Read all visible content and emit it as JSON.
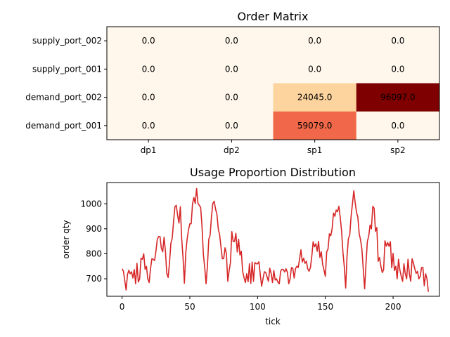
{
  "chart_data": [
    {
      "type": "heatmap",
      "title": "Order Matrix",
      "rows": [
        "supply_port_002",
        "supply_port_001",
        "demand_port_002",
        "demand_port_001"
      ],
      "columns": [
        "dp1",
        "dp2",
        "sp1",
        "sp2"
      ],
      "values": [
        [
          0.0,
          0.0,
          0.0,
          0.0
        ],
        [
          0.0,
          0.0,
          0.0,
          0.0
        ],
        [
          0.0,
          0.0,
          24045.0,
          96097.0
        ],
        [
          0.0,
          0.0,
          59079.0,
          0.0
        ]
      ],
      "cell_labels": [
        [
          "0.0",
          "0.0",
          "0.0",
          "0.0"
        ],
        [
          "0.0",
          "0.0",
          "0.0",
          "0.0"
        ],
        [
          "0.0",
          "0.0",
          "24045.0",
          "96097.0"
        ],
        [
          "0.0",
          "0.0",
          "59079.0",
          "0.0"
        ]
      ],
      "colormap": "OrRd",
      "color_low": "#fff7ec",
      "color_high": "#7f0000"
    },
    {
      "type": "line",
      "title": "Usage Proportion Distribution",
      "xlabel": "tick",
      "ylabel": "order qty",
      "xlim": [
        -11.2,
        234.2
      ],
      "ylim": [
        630,
        1085
      ],
      "xticks": [
        0,
        50,
        100,
        150,
        200
      ],
      "yticks": [
        700,
        800,
        900,
        1000
      ],
      "line_color": "#d62728",
      "series": [
        {
          "values": [
            740,
            731,
            693,
            655,
            717,
            734,
            720,
            728,
            703,
            737,
            680,
            762,
            687,
            700,
            782,
            778,
            800,
            738,
            750,
            700,
            685,
            740,
            780,
            778,
            773,
            810,
            858,
            869,
            869,
            822,
            808,
            866,
            811,
            722,
            705,
            762,
            841,
            862,
            928,
            988,
            994,
            954,
            923,
            988,
            861,
            785,
            682,
            802,
            858,
            895,
            920,
            920,
            1000,
            1025,
            1001,
            1061,
            1002,
            994,
            985,
            910,
            798,
            745,
            680,
            752,
            858,
            875,
            950,
            1002,
            1010,
            979,
            958,
            900,
            876,
            827,
            780,
            781,
            824,
            800,
            690,
            732,
            765,
            889,
            849,
            850,
            882,
            807,
            858,
            795,
            810,
            729,
            705,
            685,
            720,
            688,
            760,
            681,
            767,
            690,
            765,
            760,
            760,
            768,
            716,
            670,
            700,
            728,
            726,
            708,
            690,
            742,
            722,
            685,
            733,
            695,
            700,
            686,
            680,
            730,
            738,
            737,
            727,
            740,
            726,
            680,
            700,
            745,
            742,
            703,
            741,
            750,
            745,
            780,
            816,
            767,
            782,
            762,
            770,
            740,
            730,
            745,
            790,
            848,
            828,
            840,
            810,
            850,
            785,
            808,
            758,
            735,
            710,
            808,
            820,
            880,
            872,
            900,
            963,
            950,
            975,
            968,
            990,
            945,
            890,
            805,
            748,
            663,
            790,
            860,
            875,
            950,
            1000,
            1052,
            1005,
            966,
            946,
            880,
            855,
            817,
            737,
            660,
            760,
            850,
            870,
            915,
            900,
            990,
            982,
            890,
            905,
            770,
            785,
            750,
            725,
            736,
            852,
            830,
            845,
            830,
            848,
            744,
            802,
            733,
            750,
            700,
            778,
            735,
            710,
            690,
            760,
            720,
            700,
            778,
            720,
            690,
            780,
            763,
            740,
            722,
            730,
            700,
            710,
            745,
            745,
            672,
            720,
            700,
            648
          ]
        }
      ]
    }
  ]
}
